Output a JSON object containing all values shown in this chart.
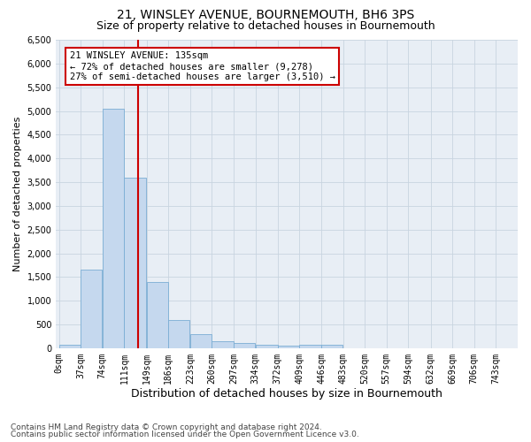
{
  "title1": "21, WINSLEY AVENUE, BOURNEMOUTH, BH6 3PS",
  "title2": "Size of property relative to detached houses in Bournemouth",
  "xlabel": "Distribution of detached houses by size in Bournemouth",
  "ylabel": "Number of detached properties",
  "footnote1": "Contains HM Land Registry data © Crown copyright and database right 2024.",
  "footnote2": "Contains public sector information licensed under the Open Government Licence v3.0.",
  "annotation_line1": "21 WINSLEY AVENUE: 135sqm",
  "annotation_line2": "← 72% of detached houses are smaller (9,278)",
  "annotation_line3": "27% of semi-detached houses are larger (3,510) →",
  "property_size_sqm": 135,
  "bin_edges": [
    0,
    37,
    74,
    111,
    149,
    186,
    223,
    260,
    297,
    334,
    372,
    409,
    446,
    483,
    520,
    557,
    594,
    632,
    669,
    706,
    743,
    780
  ],
  "categories": [
    "0sqm",
    "37sqm",
    "74sqm",
    "111sqm",
    "149sqm",
    "186sqm",
    "223sqm",
    "260sqm",
    "297sqm",
    "334sqm",
    "372sqm",
    "409sqm",
    "446sqm",
    "483sqm",
    "520sqm",
    "557sqm",
    "594sqm",
    "632sqm",
    "669sqm",
    "706sqm",
    "743sqm"
  ],
  "values": [
    80,
    1650,
    5050,
    3600,
    1400,
    600,
    300,
    150,
    100,
    80,
    50,
    70,
    70,
    0,
    0,
    0,
    0,
    0,
    0,
    0,
    0
  ],
  "bar_color": "#c5d8ee",
  "bar_edge_color": "#7aadd4",
  "vline_color": "#cc0000",
  "annotation_box_edge_color": "#cc0000",
  "ylim": [
    0,
    6500
  ],
  "yticks": [
    0,
    500,
    1000,
    1500,
    2000,
    2500,
    3000,
    3500,
    4000,
    4500,
    5000,
    5500,
    6000,
    6500
  ],
  "grid_color": "#c8d4e0",
  "bg_color": "#e8eef5",
  "title1_fontsize": 10,
  "title2_fontsize": 9,
  "xlabel_fontsize": 9,
  "ylabel_fontsize": 8,
  "tick_fontsize": 7,
  "annot_fontsize": 7.5,
  "footnote_fontsize": 6.5
}
